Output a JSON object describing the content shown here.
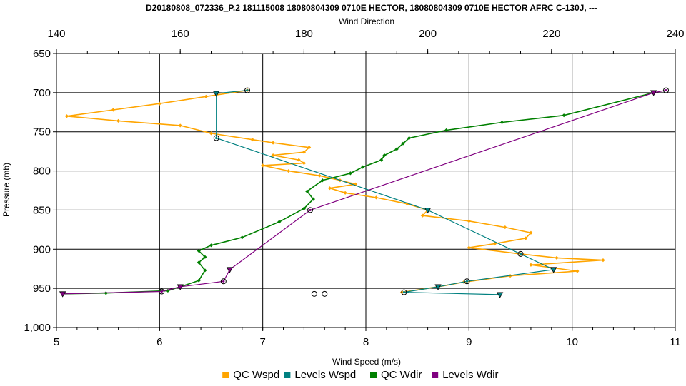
{
  "chart_data": {
    "type": "line",
    "title": "D20180808_072336_P.2 181115008 18080804309 0710E HECTOR, 18080804309 0710E HECTOR AFRC C-130J, ---",
    "xlabel": "Wind Speed (m/s)",
    "x2label": "Wind Direction",
    "ylabel": "Pressure (mb)",
    "xlim": [
      5,
      11
    ],
    "x2lim": [
      140,
      240
    ],
    "ylim": [
      650,
      1000
    ],
    "y_inverted": true,
    "grid": true,
    "legend_position": "bottom",
    "x_ticks": [
      "5",
      "6",
      "7",
      "8",
      "9",
      "10",
      "11"
    ],
    "x2_ticks": [
      "140",
      "160",
      "180",
      "200",
      "220",
      "240"
    ],
    "y_ticks": [
      "650",
      "700",
      "750",
      "800",
      "850",
      "900",
      "950",
      "1,000"
    ],
    "series": [
      {
        "name": "QC Wspd",
        "color": "#FFA500",
        "axis": "bottom",
        "marker": "diamond",
        "points": [
          [
            6.85,
            697
          ],
          [
            6.45,
            705
          ],
          [
            6.0,
            714
          ],
          [
            5.55,
            722
          ],
          [
            5.1,
            730
          ],
          [
            5.6,
            736
          ],
          [
            6.2,
            742
          ],
          [
            6.5,
            752
          ],
          [
            6.9,
            760
          ],
          [
            7.1,
            764
          ],
          [
            7.45,
            770
          ],
          [
            7.4,
            776
          ],
          [
            7.1,
            780
          ],
          [
            7.35,
            786
          ],
          [
            7.4,
            790
          ],
          [
            7.0,
            793
          ],
          [
            7.25,
            800
          ],
          [
            7.55,
            806
          ],
          [
            7.75,
            812
          ],
          [
            7.9,
            817
          ],
          [
            7.65,
            822
          ],
          [
            7.8,
            828
          ],
          [
            8.1,
            834
          ],
          [
            8.4,
            842
          ],
          [
            8.6,
            850
          ],
          [
            8.55,
            857
          ],
          [
            9.0,
            864
          ],
          [
            9.35,
            872
          ],
          [
            9.6,
            879
          ],
          [
            9.55,
            886
          ],
          [
            9.25,
            893
          ],
          [
            9.0,
            898
          ],
          [
            9.5,
            906
          ],
          [
            9.85,
            911
          ],
          [
            10.3,
            914
          ],
          [
            9.6,
            920
          ],
          [
            10.05,
            928
          ],
          [
            9.4,
            934
          ],
          [
            8.95,
            942
          ],
          [
            8.7,
            948
          ],
          [
            8.35,
            955
          ]
        ]
      },
      {
        "name": "Levels Wspd",
        "color": "#008080",
        "axis": "bottom",
        "marker": "mixed",
        "points": [
          [
            6.85,
            697
          ],
          [
            6.55,
            701
          ],
          [
            6.55,
            758
          ],
          [
            8.6,
            850
          ],
          [
            9.5,
            906
          ],
          [
            9.82,
            926
          ],
          [
            8.98,
            941
          ],
          [
            8.7,
            948
          ],
          [
            8.37,
            955
          ],
          [
            9.3,
            958
          ]
        ]
      },
      {
        "name": "QC Wdir",
        "color": "#008000",
        "axis": "top",
        "marker": "diamond",
        "points": [
          [
            236.5,
            700
          ],
          [
            222,
            729
          ],
          [
            212,
            738
          ],
          [
            203,
            748
          ],
          [
            197,
            758
          ],
          [
            196,
            765
          ],
          [
            195,
            772
          ],
          [
            193,
            780
          ],
          [
            192.5,
            786
          ],
          [
            189.5,
            795
          ],
          [
            187.5,
            803
          ],
          [
            183,
            812
          ],
          [
            180.5,
            826
          ],
          [
            181.5,
            836
          ],
          [
            180,
            848
          ],
          [
            176,
            865
          ],
          [
            170,
            885
          ],
          [
            165,
            895
          ],
          [
            163,
            902
          ],
          [
            164,
            910
          ],
          [
            163,
            917
          ],
          [
            164,
            927
          ],
          [
            163,
            940
          ],
          [
            160,
            948
          ],
          [
            158,
            953
          ],
          [
            148,
            956
          ],
          [
            141,
            957
          ]
        ]
      },
      {
        "name": "Levels Wdir",
        "color": "#800080",
        "axis": "top",
        "marker": "mixed",
        "points": [
          [
            238.5,
            697
          ],
          [
            236.5,
            700
          ],
          [
            181,
            850
          ],
          [
            168,
            926
          ],
          [
            167,
            941
          ],
          [
            160,
            948
          ],
          [
            157,
            954
          ],
          [
            141,
            957
          ]
        ]
      }
    ],
    "extra_markers": [
      {
        "axis": "bottom",
        "x": 7.5,
        "y": 957
      },
      {
        "axis": "bottom",
        "x": 7.6,
        "y": 957
      }
    ]
  }
}
